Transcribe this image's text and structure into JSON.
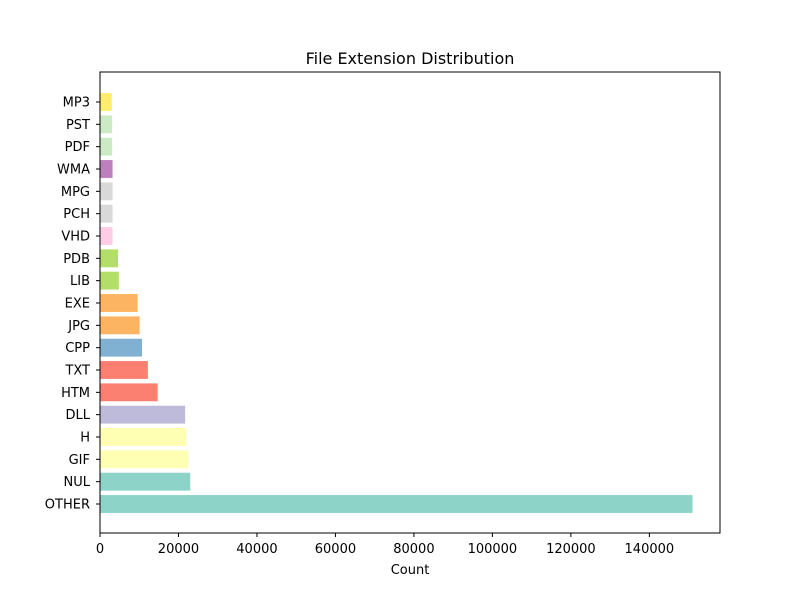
{
  "chart_data": {
    "type": "bar",
    "orientation": "horizontal",
    "title": "File Extension Distribution",
    "xlabel": "Count",
    "ylabel": "",
    "xlim": [
      0,
      158000
    ],
    "x_ticks": [
      0,
      20000,
      40000,
      60000,
      80000,
      100000,
      120000,
      140000
    ],
    "grid": false,
    "categories": [
      "OTHER",
      "NUL",
      "GIF",
      "H",
      "DLL",
      "HTM",
      "TXT",
      "CPP",
      "JPG",
      "EXE",
      "LIB",
      "PDB",
      "VHD",
      "PCH",
      "MPG",
      "WMA",
      "PDF",
      "PST",
      "MP3"
    ],
    "values": [
      151000,
      23000,
      22500,
      22000,
      21700,
      14700,
      12200,
      10700,
      10100,
      9600,
      4800,
      4600,
      3200,
      3200,
      3200,
      3200,
      3100,
      3100,
      3000
    ],
    "colors": [
      "#8dd3c7",
      "#8dd3c7",
      "#ffffb3",
      "#ffffb3",
      "#bebada",
      "#fb8072",
      "#fb8072",
      "#80b1d3",
      "#fdb462",
      "#fdb462",
      "#b3de69",
      "#b3de69",
      "#fccde5",
      "#d9d9d9",
      "#d9d9d9",
      "#bc80bd",
      "#ccebc5",
      "#ccebc5",
      "#ffed6f"
    ]
  }
}
